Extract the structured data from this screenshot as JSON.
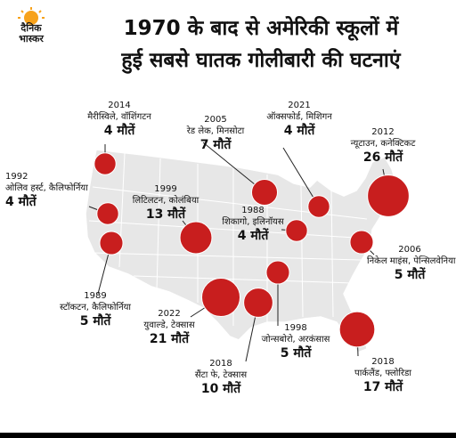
{
  "logo": {
    "line1": "दैनिक",
    "line2": "भास्कर",
    "sun_color": "#f7a21b"
  },
  "title": {
    "line1": "1970 के बाद से अमेरिकी स्कूलों में",
    "line2": "हुई सबसे घातक गोलीबारी की घटनाएं"
  },
  "colors": {
    "bubble": "#c81e1e",
    "land": "#e7e7e7",
    "border": "#ffffff",
    "text": "#111111"
  },
  "events": [
    {
      "year": "2014",
      "place": "मैरीस्विले, वॉशिंगटन",
      "deaths": 4,
      "deaths_label": "4 मौतें"
    },
    {
      "year": "2005",
      "place": "रेड लेक, मिनसोटा",
      "deaths": 7,
      "deaths_label": "7 मौतें"
    },
    {
      "year": "2021",
      "place": "ऑक्सफोर्ड, मिशिगन",
      "deaths": 4,
      "deaths_label": "4 मौतें"
    },
    {
      "year": "2012",
      "place": "न्यूटाउन, कनेक्टिकट",
      "deaths": 26,
      "deaths_label": "26 मौतें"
    },
    {
      "year": "1992",
      "place": "ओलिव हर्स्ट, कैलिफोर्निया",
      "deaths": 4,
      "deaths_label": "4 मौतें"
    },
    {
      "year": "1999",
      "place": "लिटिलटन, कोलंबिया",
      "deaths": 13,
      "deaths_label": "13 मौतें"
    },
    {
      "year": "1988",
      "place": "शिकागो, इलिनॉयस",
      "deaths": 4,
      "deaths_label": "4 मौतें"
    },
    {
      "year": "2006",
      "place": "निकेल माइंस, पेन्सिलवेनिया",
      "deaths": 5,
      "deaths_label": "5 मौतें"
    },
    {
      "year": "1989",
      "place": "स्टॉकटन, कैलिफोर्निया",
      "deaths": 5,
      "deaths_label": "5 मौतें"
    },
    {
      "year": "2022",
      "place": "युवाल्डे, टेक्सास",
      "deaths": 21,
      "deaths_label": "21 मौतें"
    },
    {
      "year": "1998",
      "place": "जोन्सबोरो, अरकंसास",
      "deaths": 5,
      "deaths_label": "5 मौतें"
    },
    {
      "year": "2018",
      "place": "सैंटा फे, टेक्सास",
      "deaths": 10,
      "deaths_label": "10 मौतें"
    },
    {
      "year": "2018",
      "place": "पार्कलैंड, फ्लोरिडा",
      "deaths": 17,
      "deaths_label": "17 मौतें"
    }
  ]
}
